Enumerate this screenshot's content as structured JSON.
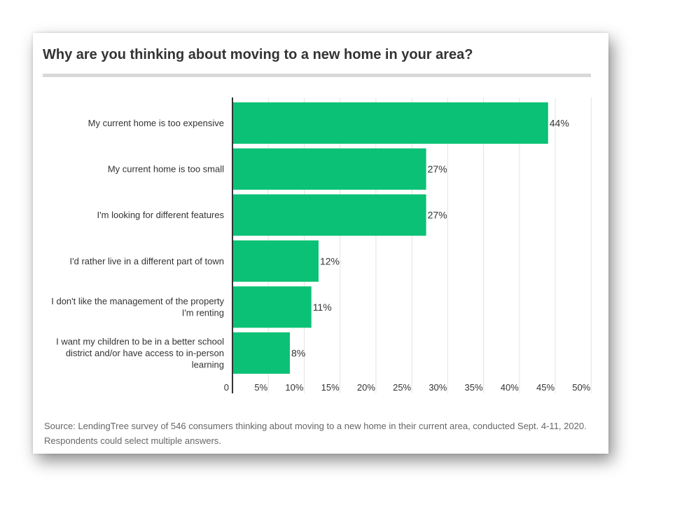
{
  "title": "Why are you thinking about moving to a new home in your area?",
  "source": "Source: LendingTree survey of 546 consumers thinking about moving to a new home in their current area, conducted Sept. 4-11, 2020. Respondents could select multiple answers.",
  "colors": {
    "bar": "#0bc175",
    "grid": "#e3e3e3",
    "axis": "#333333",
    "text": "#333333"
  },
  "chart_data": {
    "type": "bar",
    "orientation": "horizontal",
    "categories": [
      [
        "My current home is too expensive"
      ],
      [
        "My current home is too small"
      ],
      [
        "I'm looking for different features"
      ],
      [
        "I'd rather live in a different part of town"
      ],
      [
        "I don't like the management of the property",
        "I'm renting"
      ],
      [
        "I want my children to be in a better school",
        "district and/or have access to in-person",
        "learning"
      ]
    ],
    "values": [
      44,
      27,
      27,
      12,
      11,
      8
    ],
    "value_labels": [
      "44%",
      "27%",
      "27%",
      "12%",
      "11%",
      "8%"
    ],
    "xlim": [
      0,
      50
    ],
    "ticks": [
      0,
      5,
      10,
      15,
      20,
      25,
      30,
      35,
      40,
      45,
      50
    ],
    "tick_labels": [
      "0",
      "5%",
      "10%",
      "15%",
      "20%",
      "25%",
      "30%",
      "35%",
      "40%",
      "45%",
      "50%"
    ],
    "grid": true,
    "legend": "none"
  }
}
